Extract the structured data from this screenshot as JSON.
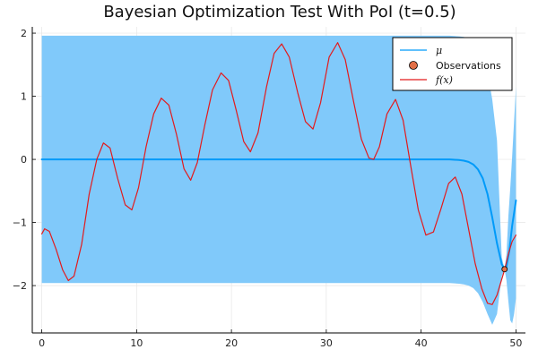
{
  "chart_data": {
    "type": "line",
    "title": "Bayesian Optimization Test With PoI (t=0.5)",
    "xlabel": "",
    "ylabel": "",
    "xlim": [
      -1,
      51
    ],
    "ylim": [
      -2.75,
      2.1
    ],
    "x_ticks": [
      0,
      10,
      20,
      30,
      40,
      50
    ],
    "y_ticks": [
      -2,
      -1,
      0,
      1,
      2
    ],
    "grid": true,
    "legend_position": "top-right",
    "colors": {
      "band": "#80c9fa",
      "mu": "#009af9",
      "f": "#e31a1c",
      "observation_fill": "#e26f46",
      "grid": "#e6e6e6",
      "axis": "#000000"
    },
    "series": [
      {
        "name": "μ",
        "kind": "line",
        "x": [
          0,
          5,
          10,
          15,
          20,
          25,
          30,
          35,
          40,
          42,
          43,
          44,
          44.5,
          45,
          45.5,
          46,
          46.5,
          47,
          47.5,
          48,
          48.5,
          48.8,
          49,
          49.3,
          49.6,
          50
        ],
        "y": [
          0,
          0,
          0,
          0,
          0,
          0,
          0,
          0,
          0,
          0,
          0,
          -0.01,
          -0.02,
          -0.04,
          -0.08,
          -0.16,
          -0.3,
          -0.55,
          -0.92,
          -1.33,
          -1.66,
          -1.74,
          -1.7,
          -1.45,
          -1.05,
          -0.65
        ]
      },
      {
        "name": "",
        "kind": "band",
        "x": [
          0,
          5,
          10,
          15,
          20,
          25,
          30,
          35,
          40,
          42,
          43,
          44,
          44.5,
          45,
          45.5,
          46,
          46.5,
          47,
          47.5,
          48,
          48.5,
          48.8,
          49,
          49.2,
          49.4,
          49.6,
          49.8,
          50
        ],
        "upper": [
          1.96,
          1.96,
          1.96,
          1.96,
          1.96,
          1.96,
          1.96,
          1.96,
          1.96,
          1.96,
          1.96,
          1.95,
          1.94,
          1.92,
          1.88,
          1.8,
          1.65,
          1.38,
          0.95,
          0.3,
          -1.55,
          -1.74,
          -1.5,
          -0.9,
          -0.45,
          0.05,
          0.6,
          1.15
        ],
        "lower": [
          -1.96,
          -1.96,
          -1.96,
          -1.96,
          -1.96,
          -1.96,
          -1.96,
          -1.96,
          -1.96,
          -1.96,
          -1.96,
          -1.97,
          -1.98,
          -2.0,
          -2.04,
          -2.12,
          -2.26,
          -2.45,
          -2.62,
          -2.45,
          -1.85,
          -1.74,
          -1.92,
          -2.25,
          -2.55,
          -2.6,
          -2.45,
          -2.2
        ]
      },
      {
        "name": "Observations",
        "kind": "scatter",
        "x": [
          48.8
        ],
        "y": [
          -1.74
        ]
      },
      {
        "name": "f(x)",
        "kind": "line",
        "x": [
          0,
          0.3,
          0.8,
          1.5,
          2.2,
          2.8,
          3.4,
          4.2,
          5.0,
          5.8,
          6.5,
          7.2,
          8.0,
          8.8,
          9.5,
          10.2,
          11.0,
          11.8,
          12.6,
          13.4,
          14.2,
          15.0,
          15.7,
          16.4,
          17.2,
          18.0,
          18.9,
          19.7,
          20.5,
          21.3,
          22.0,
          22.8,
          23.7,
          24.5,
          25.3,
          26.1,
          27.0,
          27.8,
          28.6,
          29.4,
          30.3,
          31.2,
          32.0,
          32.9,
          33.7,
          34.5,
          35.0,
          35.6,
          36.4,
          37.3,
          38.1,
          38.9,
          39.7,
          40.5,
          41.3,
          42.1,
          42.9,
          43.6,
          44.3,
          45.0,
          45.7,
          46.4,
          47.0,
          47.5,
          48.0,
          48.4,
          48.8,
          49.2,
          49.6,
          50
        ],
        "y": [
          -1.18,
          -1.1,
          -1.14,
          -1.42,
          -1.75,
          -1.92,
          -1.85,
          -1.35,
          -0.55,
          0.0,
          0.26,
          0.18,
          -0.3,
          -0.72,
          -0.8,
          -0.45,
          0.2,
          0.72,
          0.97,
          0.86,
          0.4,
          -0.15,
          -0.33,
          -0.05,
          0.55,
          1.1,
          1.37,
          1.25,
          0.78,
          0.28,
          0.12,
          0.42,
          1.15,
          1.68,
          1.83,
          1.62,
          1.05,
          0.6,
          0.48,
          0.9,
          1.62,
          1.85,
          1.58,
          0.9,
          0.32,
          0.02,
          0.0,
          0.2,
          0.72,
          0.95,
          0.62,
          -0.1,
          -0.8,
          -1.2,
          -1.15,
          -0.78,
          -0.38,
          -0.28,
          -0.55,
          -1.1,
          -1.65,
          -2.05,
          -2.28,
          -2.3,
          -2.15,
          -1.95,
          -1.75,
          -1.5,
          -1.3,
          -1.2
        ]
      }
    ]
  },
  "legend": {
    "mu_label": "μ",
    "obs_label": "Observations",
    "f_label": "f(x)"
  }
}
